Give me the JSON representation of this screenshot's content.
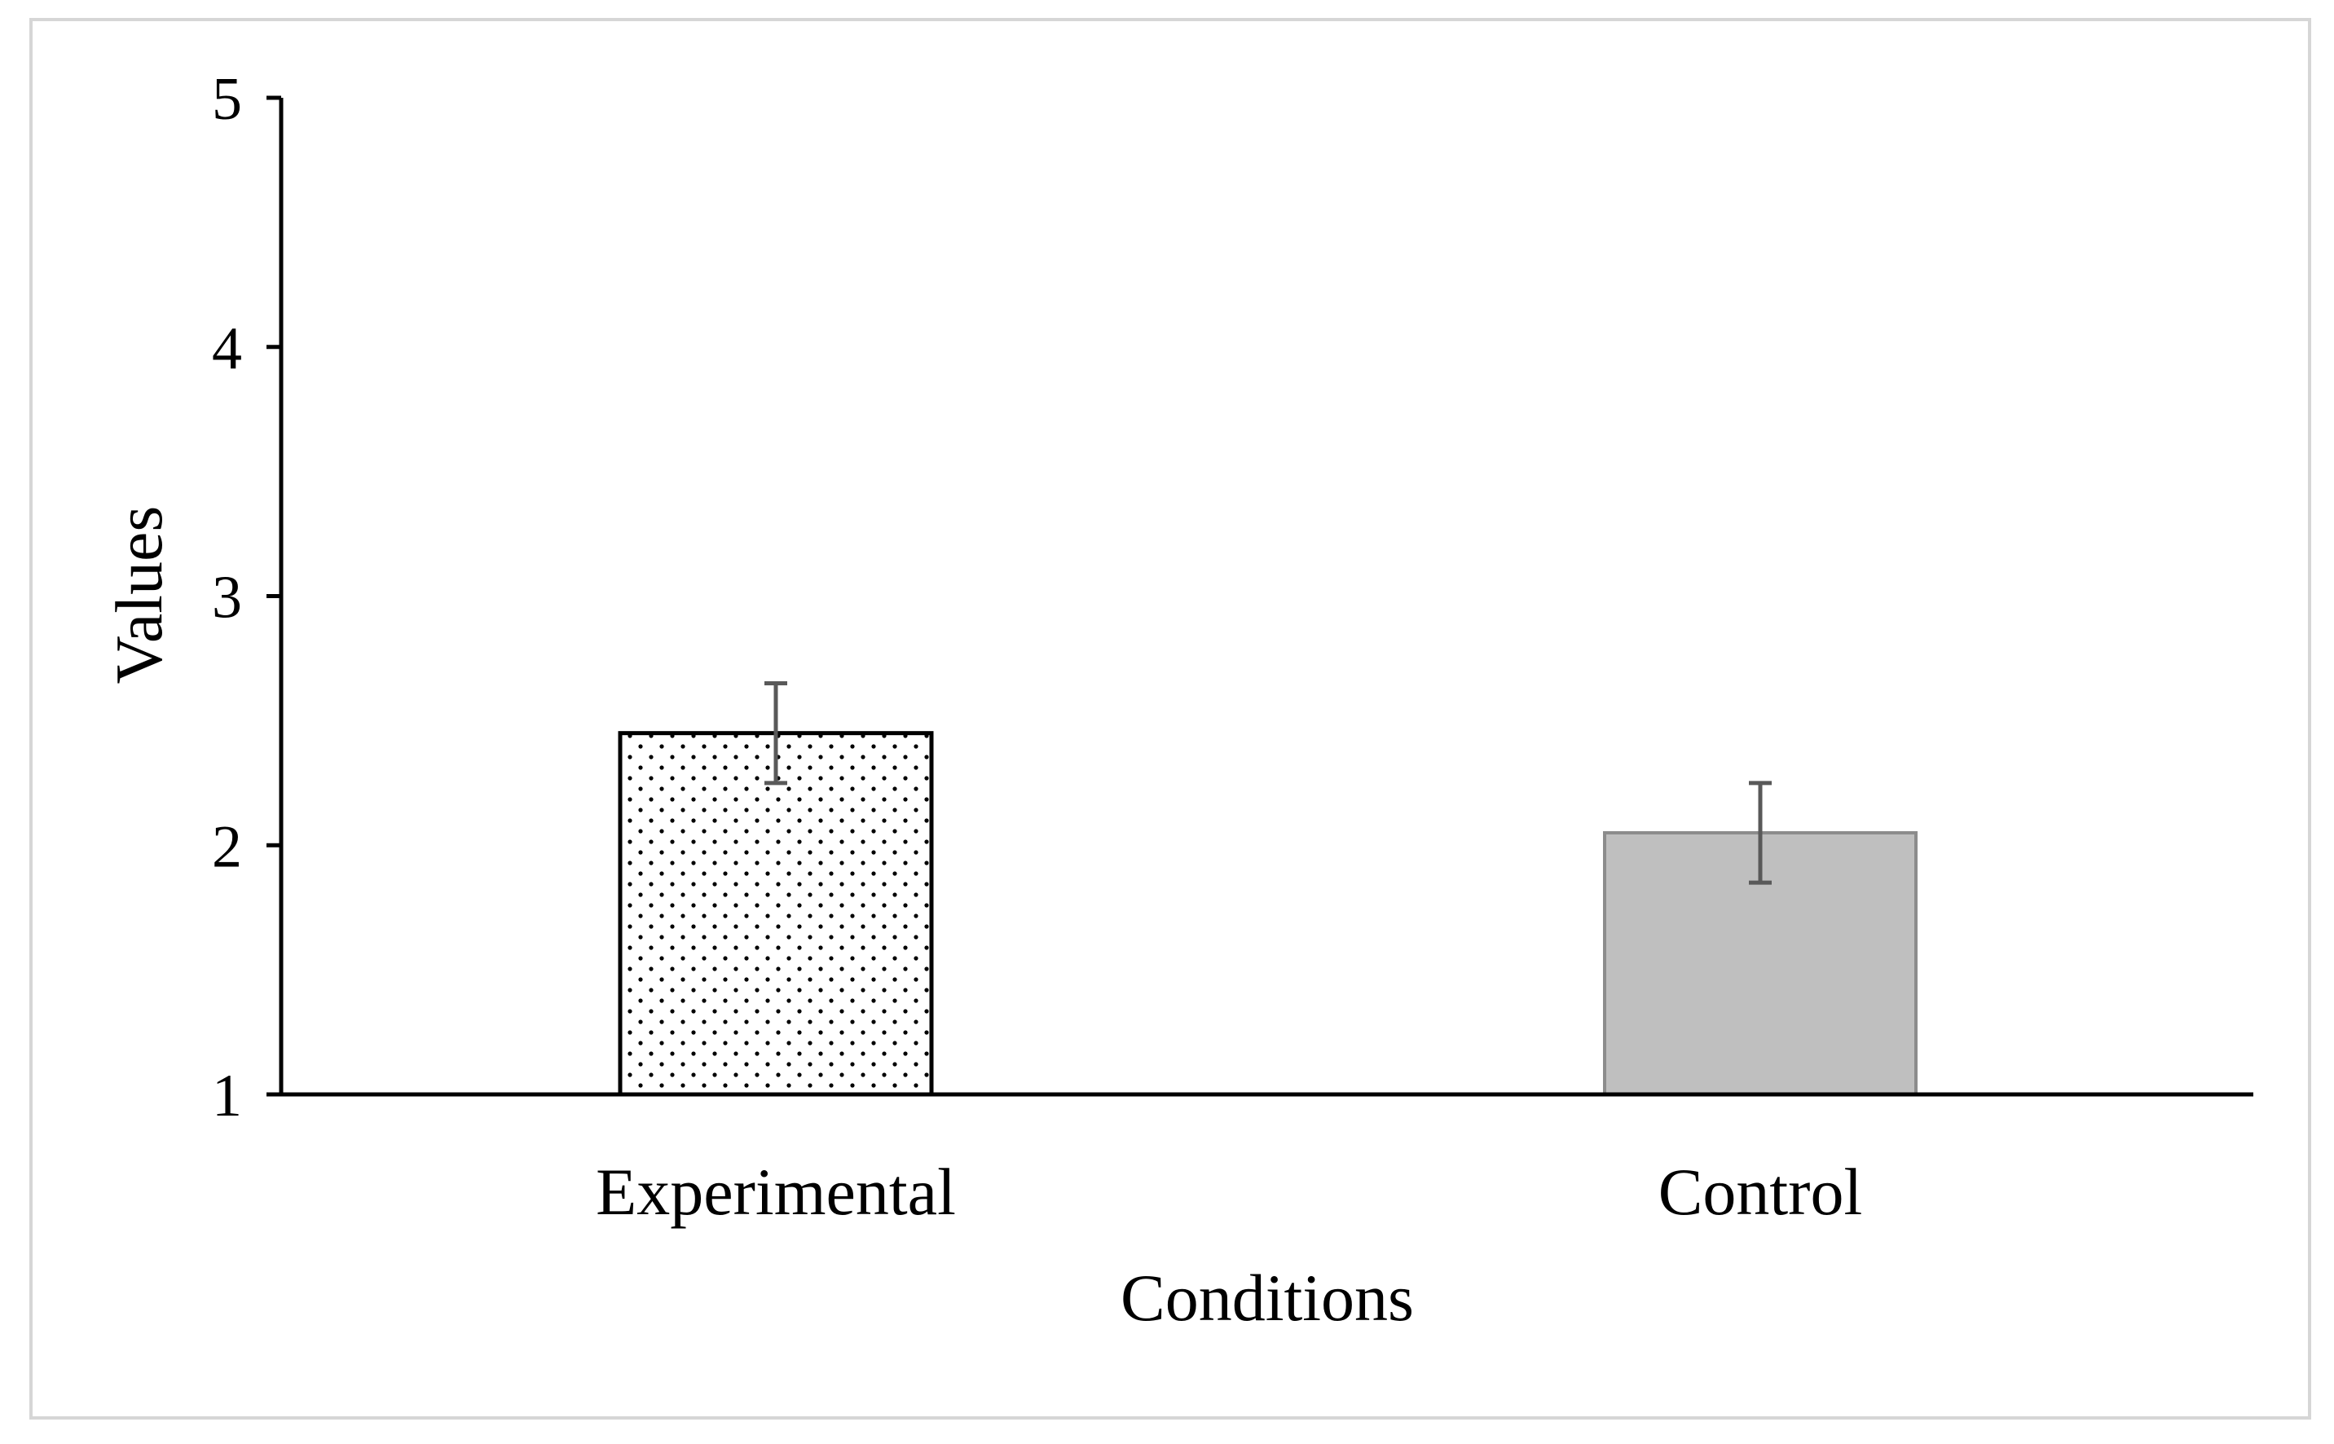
{
  "chart_data": {
    "type": "bar",
    "title": "",
    "xlabel": "Conditions",
    "ylabel": "Values",
    "ylim": [
      1,
      5
    ],
    "yticks": [
      1,
      2,
      3,
      4,
      5
    ],
    "categories": [
      "Experimental",
      "Control"
    ],
    "values": [
      2.45,
      2.05
    ],
    "error_bars": [
      0.2,
      0.2
    ],
    "bar_styles": [
      {
        "fill": "#ffffff",
        "pattern": "dots",
        "stroke": "#000000"
      },
      {
        "fill": "#bfbfbf",
        "pattern": "solid",
        "stroke": "#8c8c8c"
      }
    ],
    "grid": false,
    "legend": "none"
  },
  "colors": {
    "axis": "#000000",
    "error_bar": "#595959",
    "frame_border": "#d6d6d6"
  }
}
